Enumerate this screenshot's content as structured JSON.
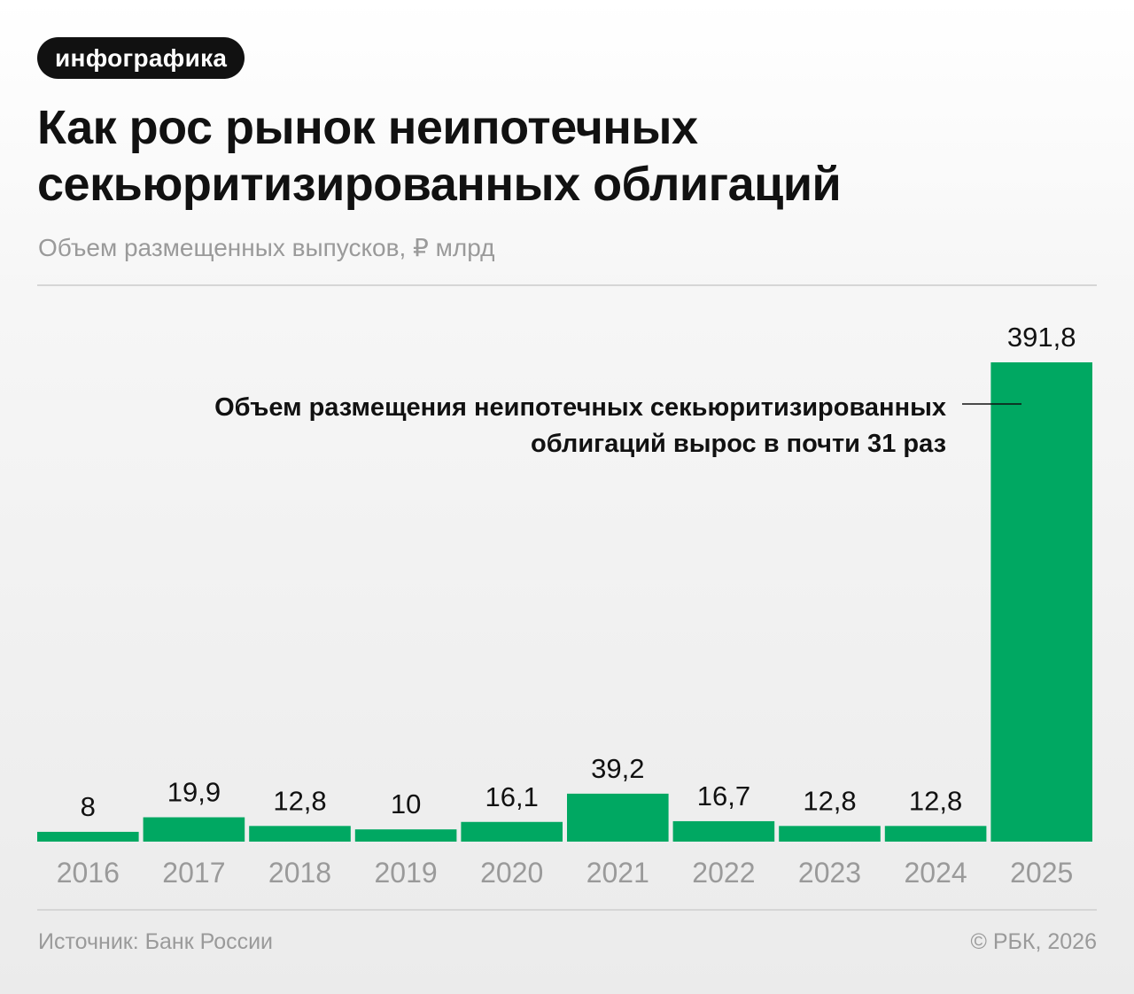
{
  "badge": "инфографика",
  "header": {
    "title": "Как рос рынок неипотечных секьюритизированных облигаций",
    "subtitle": "Объем размещенных выпусков, ₽ млрд"
  },
  "chart_data": {
    "type": "bar",
    "categories": [
      "2016",
      "2017",
      "2018",
      "2019",
      "2020",
      "2021",
      "2022",
      "2023",
      "2024",
      "2025"
    ],
    "values": [
      8,
      19.9,
      12.8,
      10,
      16.1,
      39.2,
      16.7,
      12.8,
      12.8,
      391.8
    ],
    "value_labels": [
      "8",
      "19,9",
      "12,8",
      "10",
      "16,1",
      "39,2",
      "16,7",
      "12,8",
      "12,8",
      "391,8"
    ],
    "ylim": [
      0,
      391.8
    ],
    "grid": false,
    "annotation": {
      "lines": [
        "Объем размещения неипотечных секьюритизированных",
        "облигаций вырос в почти 31 раз"
      ],
      "target_category": "2025"
    }
  },
  "colors": {
    "bar": "#00a862",
    "text": "#111111",
    "muted": "#9a9a9a",
    "badge_bg": "#111111",
    "rule": "#d6d6d6"
  },
  "footer": {
    "source": "Источник: Банк России",
    "copyright": "© РБК, 2026"
  }
}
